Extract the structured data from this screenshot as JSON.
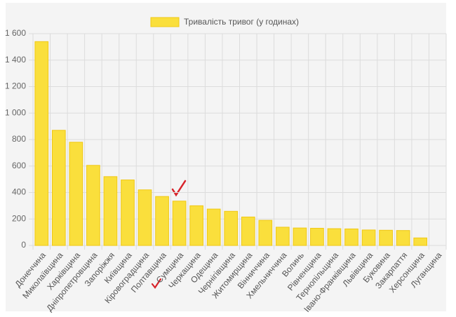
{
  "chart_data": {
    "type": "bar",
    "legend": "Тривалість тривог (у годинах)",
    "color": "#fadf3c",
    "border_color": "#f0c814",
    "categories": [
      "Донеччина",
      "Миколаївщина",
      "Харківщина",
      "Дніпропетровщина",
      "Запоріжжя",
      "Київщина",
      "Кіровоградщина",
      "Полтавщина",
      "Сумщина",
      "Черкащина",
      "Одещина",
      "Чернігівщина",
      "Житомирщина",
      "Вінниччина",
      "Хмельниччина",
      "Волинь",
      "Рівненщина",
      "Тернопільщина",
      "Івано-Франківщина",
      "Львівщина",
      "Буковина",
      "Закарпаття",
      "Херсонщина",
      "Луганщина"
    ],
    "values": [
      1540,
      870,
      780,
      605,
      520,
      495,
      420,
      370,
      335,
      300,
      275,
      258,
      215,
      190,
      138,
      132,
      130,
      127,
      125,
      117,
      115,
      113,
      57,
      0
    ],
    "ylim": [
      0,
      1600
    ],
    "yticks": [
      0,
      200,
      400,
      600,
      800,
      {
        "value": 1000,
        "label": "1 000"
      },
      {
        "value": 1200,
        "label": "1 200"
      },
      {
        "value": 1400,
        "label": "1 400"
      },
      {
        "value": 1600,
        "label": "1 600"
      }
    ],
    "grid": true
  }
}
